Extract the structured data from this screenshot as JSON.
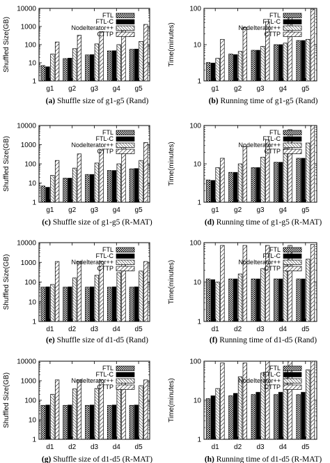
{
  "legend_labels": [
    "FTL",
    "FTL-C",
    "NodeIterator++",
    "CTTP"
  ],
  "chart_data": [
    {
      "type": "bar",
      "caption_letter": "(a)",
      "caption_text": "Shuffle size of g1-g5 (Rand)",
      "ylabel": "Shuffled Size(GB)",
      "xlabel": "",
      "y_scale": "log",
      "ylim": [
        1,
        10000
      ],
      "y_tick_labels": [
        "1",
        "10",
        "100",
        "1000",
        "10000"
      ],
      "categories": [
        "g1",
        "g2",
        "g3",
        "g4",
        "g5"
      ],
      "grid": false,
      "legend_position": "top-right",
      "series": [
        {
          "name": "FTL",
          "values": [
            7,
            17,
            27,
            45,
            55
          ]
        },
        {
          "name": "FTL-C",
          "values": [
            6,
            18,
            28,
            46,
            57
          ]
        },
        {
          "name": "NodeIterator++",
          "values": [
            30,
            60,
            110,
            100,
            150
          ]
        },
        {
          "name": "CTTP",
          "values": [
            140,
            330,
            520,
            1000,
            1300
          ]
        }
      ]
    },
    {
      "type": "bar",
      "caption_letter": "(b)",
      "caption_text": "Running time of g1-g5 (Rand)",
      "ylabel": "Time(minutes)",
      "xlabel": "",
      "y_scale": "log",
      "ylim": [
        1,
        100
      ],
      "y_tick_labels": [
        "1",
        "10",
        "100"
      ],
      "categories": [
        "g1",
        "g2",
        "g3",
        "g4",
        "g5"
      ],
      "grid": false,
      "legend_position": "top-right",
      "series": [
        {
          "name": "FTL",
          "values": [
            3.2,
            5.5,
            7,
            10,
            13
          ]
        },
        {
          "name": "FTL-C",
          "values": [
            3.1,
            5.3,
            7,
            10,
            13
          ]
        },
        {
          "name": "NodeIterator++",
          "values": [
            4.2,
            6.5,
            9,
            11,
            14
          ]
        },
        {
          "name": "CTTP",
          "values": [
            14,
            30,
            43,
            70,
            95
          ]
        }
      ]
    },
    {
      "type": "bar",
      "caption_letter": "(c)",
      "caption_text": "Shuffle size of g1-g5 (R-MAT)",
      "ylabel": "Shuffled Size(GB)",
      "xlabel": "",
      "y_scale": "log",
      "ylim": [
        1,
        10000
      ],
      "y_tick_labels": [
        "1",
        "10",
        "100",
        "1000",
        "10000"
      ],
      "categories": [
        "g1",
        "g2",
        "g3",
        "g4",
        "g5"
      ],
      "grid": false,
      "legend_position": "top-right",
      "series": [
        {
          "name": "FTL",
          "values": [
            7,
            18,
            28,
            45,
            55
          ]
        },
        {
          "name": "FTL-C",
          "values": [
            6,
            18,
            28,
            45,
            57
          ]
        },
        {
          "name": "NodeIterator++",
          "values": [
            25,
            60,
            110,
            100,
            150
          ]
        },
        {
          "name": "CTTP",
          "values": [
            150,
            330,
            530,
            1000,
            1300
          ]
        }
      ]
    },
    {
      "type": "bar",
      "caption_letter": "(d)",
      "caption_text": "Running time of g1-g5 (R-MAT)",
      "ylabel": "Time(minutes)",
      "xlabel": "",
      "y_scale": "log",
      "ylim": [
        1,
        100
      ],
      "y_tick_labels": [
        "1",
        "10",
        "100"
      ],
      "categories": [
        "g1",
        "g2",
        "g3",
        "g4",
        "g5"
      ],
      "grid": false,
      "legend_position": "top-right",
      "series": [
        {
          "name": "FTL",
          "values": [
            3.8,
            6,
            8,
            11,
            14
          ]
        },
        {
          "name": "FTL-C",
          "values": [
            3.7,
            6,
            8,
            11,
            14
          ]
        },
        {
          "name": "NodeIterator++",
          "values": [
            8,
            10,
            15,
            25,
            35
          ]
        },
        {
          "name": "CTTP",
          "values": [
            14,
            28,
            42,
            78,
            100
          ]
        }
      ]
    },
    {
      "type": "bar",
      "caption_letter": "(e)",
      "caption_text": "Shuffle size of d1-d5 (Rand)",
      "ylabel": "Shuffled Size(GB)",
      "xlabel": "",
      "y_scale": "log",
      "ylim": [
        1,
        10000
      ],
      "y_tick_labels": [
        "1",
        "10",
        "100",
        "1000",
        "10000"
      ],
      "categories": [
        "d1",
        "d2",
        "d3",
        "d4",
        "d5"
      ],
      "grid": false,
      "legend_position": "top-right",
      "series": [
        {
          "name": "FTL",
          "values": [
            55,
            55,
            55,
            55,
            55
          ]
        },
        {
          "name": "FTL-C",
          "values": [
            57,
            57,
            57,
            57,
            57
          ]
        },
        {
          "name": "NodeIterator++",
          "values": [
            75,
            160,
            220,
            300,
            360
          ]
        },
        {
          "name": "CTTP",
          "values": [
            1100,
            1100,
            1100,
            1100,
            1100
          ]
        }
      ]
    },
    {
      "type": "bar",
      "caption_letter": "(f)",
      "caption_text": "Running time of d1-d5 (Rand)",
      "ylabel": "Time(minutes)",
      "xlabel": "",
      "y_scale": "log",
      "ylim": [
        1,
        100
      ],
      "y_tick_labels": [
        "1",
        "10",
        "100"
      ],
      "categories": [
        "d1",
        "d2",
        "d3",
        "d4",
        "d5"
      ],
      "grid": false,
      "legend_position": "top-right",
      "series": [
        {
          "name": "FTL",
          "values": [
            12,
            12,
            12,
            12,
            12
          ]
        },
        {
          "name": "FTL-C",
          "values": [
            11.5,
            12,
            12,
            12,
            12
          ]
        },
        {
          "name": "NodeIterator++",
          "values": [
            10,
            16,
            22,
            30,
            38
          ]
        },
        {
          "name": "CTTP",
          "values": [
            85,
            85,
            85,
            85,
            90
          ]
        }
      ]
    },
    {
      "type": "bar",
      "caption_letter": "(g)",
      "caption_text": "Shuffle size of d1-d5 (R-MAT)",
      "ylabel": "Shuffled Size(GB)",
      "xlabel": "",
      "y_scale": "log",
      "ylim": [
        1,
        10000
      ],
      "y_tick_labels": [
        "1",
        "10",
        "100",
        "1000",
        "10000"
      ],
      "categories": [
        "d1",
        "d2",
        "d3",
        "d4",
        "d5"
      ],
      "grid": false,
      "legend_position": "top-right",
      "series": [
        {
          "name": "FTL",
          "values": [
            55,
            55,
            55,
            55,
            55
          ]
        },
        {
          "name": "FTL-C",
          "values": [
            57,
            57,
            57,
            57,
            57
          ]
        },
        {
          "name": "NodeIterator++",
          "values": [
            200,
            380,
            400,
            560,
            560
          ]
        },
        {
          "name": "CTTP",
          "values": [
            1100,
            1100,
            1100,
            1100,
            1100
          ]
        }
      ]
    },
    {
      "type": "bar",
      "caption_letter": "(h)",
      "caption_text": "Running time of d1-d5 (R-MAT)",
      "ylabel": "Time(minutes)",
      "xlabel": "",
      "y_scale": "log",
      "ylim": [
        1,
        100
      ],
      "y_tick_labels": [
        "1",
        "10",
        "100"
      ],
      "categories": [
        "d1",
        "d2",
        "d3",
        "d4",
        "d5"
      ],
      "grid": false,
      "legend_position": "top-right",
      "series": [
        {
          "name": "FTL",
          "values": [
            11,
            13,
            14,
            14,
            14
          ]
        },
        {
          "name": "FTL-C",
          "values": [
            13,
            15,
            16,
            16,
            16
          ]
        },
        {
          "name": "NodeIterator++",
          "values": [
            20,
            40,
            50,
            60,
            60
          ]
        },
        {
          "name": "CTTP",
          "values": [
            90,
            90,
            100,
            110,
            110
          ]
        }
      ]
    }
  ]
}
